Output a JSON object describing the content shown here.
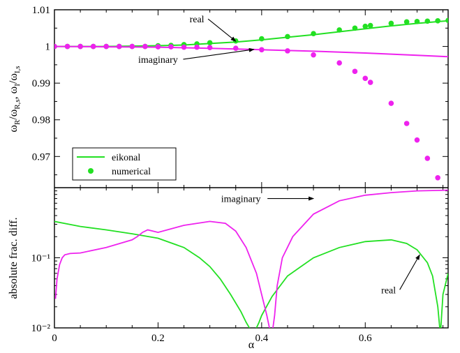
{
  "chart_data": [
    {
      "type": "line",
      "panel": "top",
      "ylabel": "ω_R/ω_R,s,  ω_I/ω_I,s",
      "xlabel": "",
      "xlim": [
        0,
        0.76
      ],
      "ylim": [
        0.9615,
        1.01
      ],
      "yticks": [
        0.97,
        0.98,
        0.99,
        1,
        1.01
      ],
      "ytick_labels": [
        "0.97",
        "0.98",
        "0.99",
        "1",
        "1.01"
      ],
      "colors": {
        "real": "#22e022",
        "imaginary": "#ee22ee"
      },
      "series": [
        {
          "name": "eikonal",
          "part": "real",
          "style": "line",
          "x": [
            0,
            0.1,
            0.2,
            0.25,
            0.3,
            0.35,
            0.4,
            0.45,
            0.5,
            0.55,
            0.6,
            0.65,
            0.7,
            0.76
          ],
          "y": [
            1.0,
            1.0,
            1.0002,
            1.0004,
            1.0008,
            1.0012,
            1.0018,
            1.0025,
            1.0032,
            1.004,
            1.0048,
            1.0056,
            1.0063,
            1.007
          ]
        },
        {
          "name": "eikonal",
          "part": "imaginary",
          "style": "line",
          "x": [
            0,
            0.1,
            0.2,
            0.3,
            0.4,
            0.5,
            0.6,
            0.7,
            0.76
          ],
          "y": [
            1.0,
            0.9999,
            0.9998,
            0.9995,
            0.9991,
            0.9987,
            0.9982,
            0.9976,
            0.9972
          ]
        },
        {
          "name": "numerical",
          "part": "real",
          "style": "marker",
          "x": [
            0,
            0.025,
            0.05,
            0.075,
            0.1,
            0.125,
            0.15,
            0.175,
            0.2,
            0.225,
            0.25,
            0.275,
            0.3,
            0.35,
            0.4,
            0.45,
            0.5,
            0.55,
            0.58,
            0.6,
            0.61,
            0.65,
            0.68,
            0.7,
            0.72,
            0.74,
            0.76
          ],
          "y": [
            1.0,
            1.0,
            1.0,
            1.0,
            1.0,
            1.0,
            1.0,
            1.0,
            1.0002,
            1.0003,
            1.0005,
            1.0007,
            1.001,
            1.0015,
            1.0021,
            1.0027,
            1.0035,
            1.0045,
            1.005,
            1.0055,
            1.0057,
            1.0063,
            1.0067,
            1.0068,
            1.0069,
            1.007,
            1.0071
          ]
        },
        {
          "name": "numerical",
          "part": "imaginary",
          "style": "marker",
          "x": [
            0,
            0.025,
            0.05,
            0.075,
            0.1,
            0.125,
            0.15,
            0.175,
            0.2,
            0.225,
            0.25,
            0.275,
            0.3,
            0.35,
            0.4,
            0.45,
            0.5,
            0.55,
            0.58,
            0.6,
            0.61,
            0.65,
            0.68,
            0.7,
            0.72,
            0.74
          ],
          "y": [
            1.0,
            1.0,
            1.0,
            1.0,
            1.0,
            1.0,
            1.0,
            1.0,
            0.9999,
            0.9999,
            0.9998,
            0.9998,
            0.9997,
            0.9995,
            0.9991,
            0.9988,
            0.9977,
            0.9955,
            0.9932,
            0.9913,
            0.9902,
            0.9845,
            0.979,
            0.9745,
            0.9695,
            0.9642
          ]
        }
      ],
      "annotations": [
        {
          "text": "real",
          "x": 0.275,
          "y": 1.0075,
          "target": [
            0.35,
            1.0014
          ]
        },
        {
          "text": "imaginary",
          "x": 0.2,
          "y": 0.9965,
          "target": [
            0.385,
            0.9992
          ]
        }
      ],
      "legend": {
        "placement": "bottom-left",
        "entries": [
          {
            "label": "eikonal",
            "style": "line"
          },
          {
            "label": "numerical",
            "style": "marker"
          }
        ]
      }
    },
    {
      "type": "line",
      "panel": "bottom",
      "yscale": "log",
      "ylabel": "absolute frac. diff.",
      "xlabel": "α",
      "xlim": [
        0,
        0.76
      ],
      "ylim": [
        0.01,
        1.0
      ],
      "xticks": [
        0,
        0.2,
        0.4,
        0.6
      ],
      "xtick_labels": [
        "0",
        "0.2",
        "0.4",
        "0.6"
      ],
      "yticks": [
        0.01,
        0.1
      ],
      "ytick_labels": [
        "10⁻²",
        "10⁻¹"
      ],
      "colors": {
        "real": "#22e022",
        "imaginary": "#ee22ee"
      },
      "series": [
        {
          "part": "real",
          "x": [
            0,
            0.05,
            0.1,
            0.15,
            0.2,
            0.25,
            0.28,
            0.3,
            0.32,
            0.34,
            0.36,
            0.37,
            0.38,
            0.385,
            0.39,
            0.395,
            0.4,
            0.42,
            0.45,
            0.5,
            0.55,
            0.6,
            0.65,
            0.68,
            0.7,
            0.72,
            0.73,
            0.74,
            0.745,
            0.75,
            0.76
          ],
          "y": [
            0.33,
            0.28,
            0.25,
            0.22,
            0.19,
            0.14,
            0.1,
            0.075,
            0.05,
            0.03,
            0.017,
            0.012,
            0.009,
            0.008,
            0.01,
            0.012,
            0.015,
            0.028,
            0.055,
            0.1,
            0.14,
            0.17,
            0.18,
            0.16,
            0.13,
            0.085,
            0.055,
            0.02,
            0.008,
            0.03,
            0.06
          ]
        },
        {
          "part": "imaginary",
          "x": [
            0.002,
            0.005,
            0.01,
            0.015,
            0.02,
            0.03,
            0.05,
            0.1,
            0.15,
            0.16,
            0.17,
            0.18,
            0.19,
            0.2,
            0.25,
            0.3,
            0.33,
            0.35,
            0.37,
            0.39,
            0.4,
            0.41,
            0.415,
            0.42,
            0.425,
            0.43,
            0.44,
            0.46,
            0.5,
            0.55,
            0.6,
            0.65,
            0.7,
            0.76
          ],
          "y": [
            0.026,
            0.05,
            0.08,
            0.1,
            0.11,
            0.115,
            0.117,
            0.14,
            0.18,
            0.2,
            0.23,
            0.25,
            0.24,
            0.23,
            0.29,
            0.33,
            0.31,
            0.24,
            0.14,
            0.06,
            0.03,
            0.015,
            0.01,
            0.008,
            0.015,
            0.04,
            0.1,
            0.2,
            0.42,
            0.65,
            0.78,
            0.85,
            0.9,
            0.92
          ]
        }
      ],
      "annotations": [
        {
          "text": "imaginary",
          "x": 0.36,
          "y": 0.7,
          "target": [
            0.5,
            0.7
          ]
        },
        {
          "text": "real",
          "x": 0.645,
          "y": 0.035,
          "target": [
            0.705,
            0.11
          ]
        }
      ]
    }
  ]
}
